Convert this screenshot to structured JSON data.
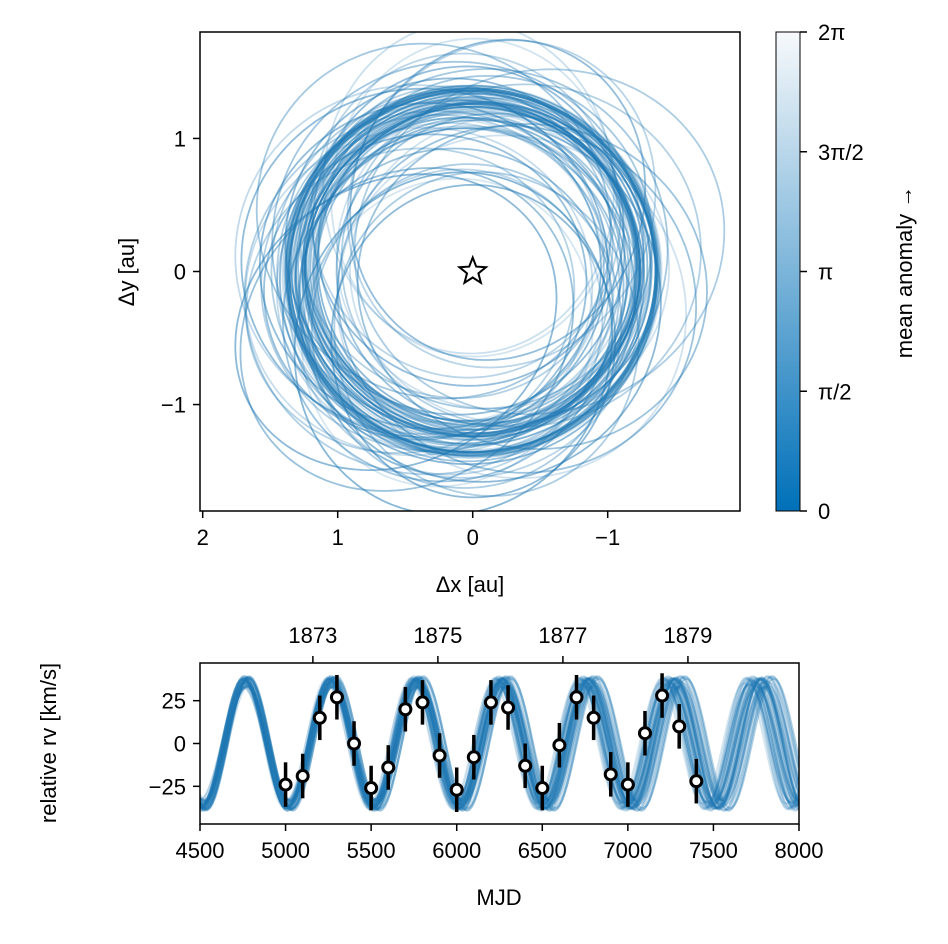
{
  "chart_data": [
    {
      "type": "orbit-plot",
      "xlabel": "Δx [au]",
      "ylabel": "Δy [au]",
      "xlim": [
        2.02,
        -1.98
      ],
      "ylim": [
        -1.8,
        1.8
      ],
      "x_ticks": [
        2,
        1,
        0,
        -1
      ],
      "x_tick_labels": [
        "2",
        "1",
        "0",
        "−1"
      ],
      "y_ticks": [
        1,
        0,
        -1
      ],
      "y_tick_labels": [
        "1",
        "0",
        "−1"
      ],
      "star_marker": {
        "x": 0,
        "y": 0
      },
      "orbit_color": "#1f78b4",
      "orbits_approx_count": 90,
      "orbit_extent_au": {
        "x_min": -1.65,
        "x_max": 1.75,
        "y_min": -1.6,
        "y_max": 1.55
      },
      "colorbar": {
        "label": "mean anomaly →",
        "range": [
          0,
          6.2832
        ],
        "ticks": [
          0,
          1.5708,
          3.1416,
          4.7124,
          6.2832
        ],
        "tick_labels": [
          "0",
          "π/2",
          "π",
          "3π/2",
          "2π"
        ],
        "color_low": "#0070b8",
        "color_high": "#f7f9fb"
      }
    },
    {
      "type": "scatter",
      "xlabel": "MJD",
      "ylabel": "relative rv [km/s]",
      "xlim": [
        4500,
        8000
      ],
      "ylim": [
        -47,
        47
      ],
      "x_ticks": [
        4500,
        5000,
        5500,
        6000,
        6500,
        7000,
        7500,
        8000
      ],
      "x_tick_labels": [
        "4500",
        "5000",
        "5500",
        "6000",
        "6500",
        "7000",
        "7500",
        "8000"
      ],
      "y_ticks": [
        25,
        0,
        -25
      ],
      "y_tick_labels": [
        "25",
        "0",
        "−25"
      ],
      "top_axis_ticks": [
        1873,
        1875,
        1877,
        1879
      ],
      "top_axis_tick_labels": [
        "1873",
        "1875",
        "1877",
        "1879"
      ],
      "model_curve": {
        "period_days": 500,
        "amplitude_kms": 36,
        "peak_mjd": 4770,
        "color": "#1f78b4"
      },
      "points": [
        {
          "x": 5000,
          "y": -24,
          "err": 13
        },
        {
          "x": 5100,
          "y": -19,
          "err": 13
        },
        {
          "x": 5200,
          "y": 15,
          "err": 13
        },
        {
          "x": 5300,
          "y": 27,
          "err": 13
        },
        {
          "x": 5400,
          "y": 0,
          "err": 13
        },
        {
          "x": 5500,
          "y": -26,
          "err": 13
        },
        {
          "x": 5600,
          "y": -14,
          "err": 13
        },
        {
          "x": 5700,
          "y": 20,
          "err": 13
        },
        {
          "x": 5800,
          "y": 24,
          "err": 13
        },
        {
          "x": 5900,
          "y": -7,
          "err": 13
        },
        {
          "x": 6000,
          "y": -27,
          "err": 13
        },
        {
          "x": 6100,
          "y": -8,
          "err": 13
        },
        {
          "x": 6200,
          "y": 24,
          "err": 13
        },
        {
          "x": 6300,
          "y": 21,
          "err": 13
        },
        {
          "x": 6400,
          "y": -13,
          "err": 13
        },
        {
          "x": 6500,
          "y": -26,
          "err": 13
        },
        {
          "x": 6600,
          "y": -1,
          "err": 13
        },
        {
          "x": 6700,
          "y": 27,
          "err": 13
        },
        {
          "x": 6800,
          "y": 15,
          "err": 13
        },
        {
          "x": 6900,
          "y": -18,
          "err": 13
        },
        {
          "x": 7000,
          "y": -24,
          "err": 13
        },
        {
          "x": 7100,
          "y": 6,
          "err": 13
        },
        {
          "x": 7200,
          "y": 28,
          "err": 13
        },
        {
          "x": 7300,
          "y": 10,
          "err": 13
        },
        {
          "x": 7400,
          "y": -22,
          "err": 13
        }
      ]
    }
  ]
}
